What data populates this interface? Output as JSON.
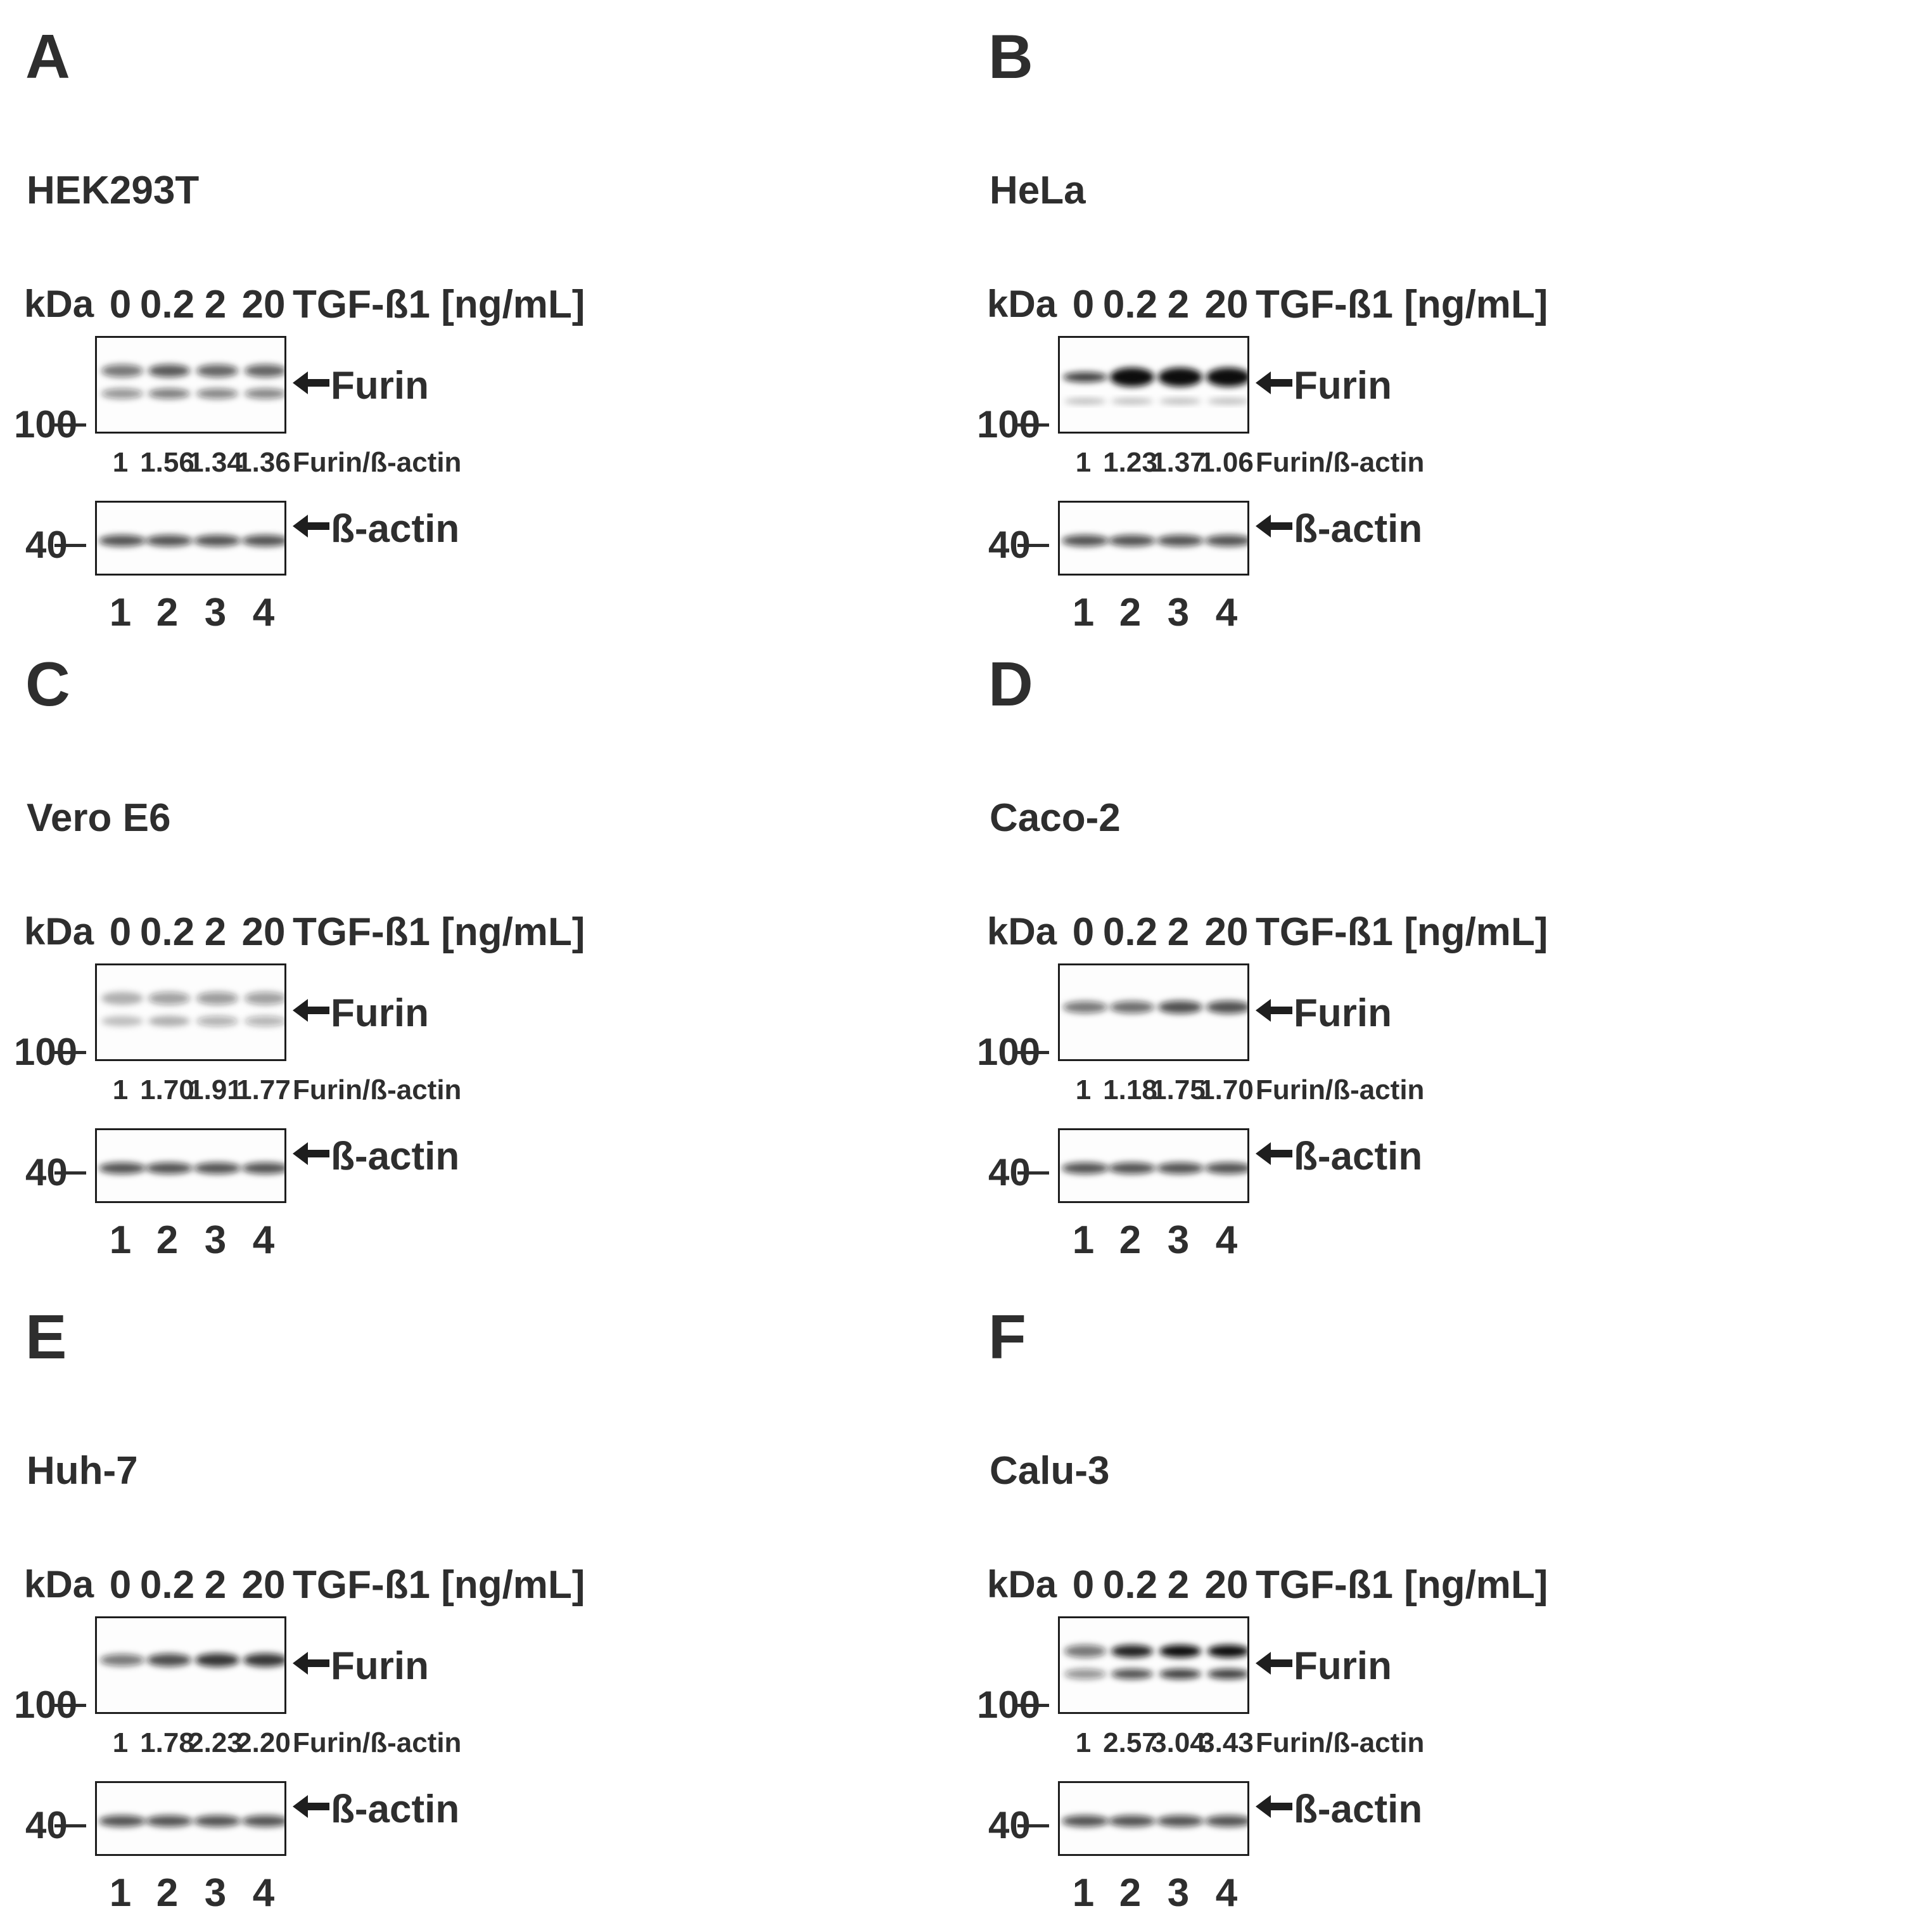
{
  "figure": {
    "panels": [
      {
        "letter": "A",
        "cell_line": "HEK293T",
        "ratios": [
          "1",
          "1.56",
          "1.34",
          "1.36"
        ],
        "furin_pattern": "doublet"
      },
      {
        "letter": "B",
        "cell_line": "HeLa",
        "ratios": [
          "1",
          "1.23",
          "1.37",
          "1.06"
        ],
        "furin_pattern": "single-strong"
      },
      {
        "letter": "C",
        "cell_line": "Vero E6",
        "ratios": [
          "1",
          "1.70",
          "1.91",
          "1.77"
        ],
        "furin_pattern": "doublet-faint"
      },
      {
        "letter": "D",
        "cell_line": "Caco-2",
        "ratios": [
          "1",
          "1.18",
          "1.75",
          "1.70"
        ],
        "furin_pattern": "single"
      },
      {
        "letter": "E",
        "cell_line": "Huh-7",
        "ratios": [
          "1",
          "1.78",
          "2.23",
          "2.20"
        ],
        "furin_pattern": "single"
      },
      {
        "letter": "F",
        "cell_line": "Calu-3",
        "ratios": [
          "1",
          "2.57",
          "3.04",
          "3.43"
        ],
        "furin_pattern": "doublet"
      }
    ],
    "common": {
      "kda_label": "kDa",
      "doses": [
        "0",
        "0.2",
        "2",
        "20"
      ],
      "treatment_label": "TGF-ß1 [ng/mL]",
      "marker_100": "100",
      "marker_40": "40",
      "furin_label": "Furin",
      "actin_label": "ß-actin",
      "ratio_label": "Furin/ß-actin",
      "lanes": [
        "1",
        "2",
        "3",
        "4"
      ]
    },
    "colors": {
      "text": "#2e2e2e",
      "band_dark": "#111111",
      "membrane": "#fdfdfd"
    }
  }
}
